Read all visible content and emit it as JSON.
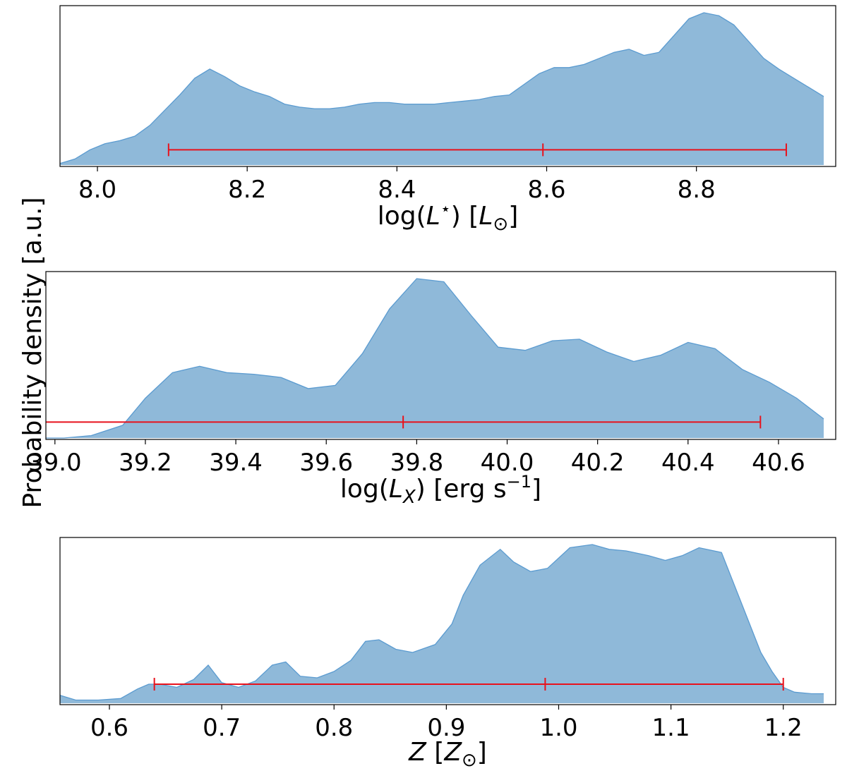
{
  "figure": {
    "shared_ylabel": "Probability density  [a.u.]",
    "fill_color": "#8fb9d9",
    "edge_color": "#5b9bd0",
    "interval_color": "#e8121c"
  },
  "chart_data": [
    {
      "type": "area",
      "xlabel": {
        "pre": "log(",
        "var": "L",
        "sup": "⋆",
        "mid": ")  [",
        "unit": "L",
        "usub": "⊙",
        "post": "]"
      },
      "xlim": [
        7.95,
        8.97
      ],
      "ticks": [
        "8.0",
        "8.2",
        "8.4",
        "8.6",
        "8.8"
      ],
      "x": [
        7.95,
        7.97,
        7.99,
        8.01,
        8.03,
        8.05,
        8.07,
        8.09,
        8.11,
        8.13,
        8.15,
        8.17,
        8.19,
        8.21,
        8.23,
        8.25,
        8.27,
        8.29,
        8.31,
        8.33,
        8.35,
        8.37,
        8.39,
        8.41,
        8.43,
        8.45,
        8.47,
        8.49,
        8.51,
        8.53,
        8.55,
        8.57,
        8.59,
        8.61,
        8.63,
        8.65,
        8.67,
        8.69,
        8.71,
        8.73,
        8.75,
        8.77,
        8.79,
        8.81,
        8.83,
        8.85,
        8.87,
        8.89,
        8.91,
        8.93,
        8.95,
        8.97
      ],
      "y": [
        0.01,
        0.04,
        0.1,
        0.14,
        0.16,
        0.19,
        0.26,
        0.36,
        0.46,
        0.57,
        0.63,
        0.58,
        0.52,
        0.48,
        0.45,
        0.4,
        0.38,
        0.37,
        0.37,
        0.38,
        0.4,
        0.41,
        0.41,
        0.4,
        0.4,
        0.4,
        0.41,
        0.42,
        0.43,
        0.45,
        0.46,
        0.53,
        0.6,
        0.64,
        0.64,
        0.66,
        0.7,
        0.74,
        0.76,
        0.72,
        0.74,
        0.85,
        0.96,
        1.0,
        0.98,
        0.92,
        0.81,
        0.7,
        0.63,
        0.57,
        0.51,
        0.45
      ],
      "interval": {
        "low": 8.095,
        "median": 8.595,
        "high": 8.92
      },
      "interval_level": 0.1
    },
    {
      "type": "area",
      "xlabel": {
        "pre": "log(",
        "var": "L",
        "sub": "X",
        "mid": ")  [erg s",
        "sup": "−1",
        "post": "]"
      },
      "xlim": [
        38.98,
        40.7
      ],
      "ticks": [
        "39.0",
        "39.2",
        "39.4",
        "39.6",
        "39.8",
        "40.0",
        "40.2",
        "40.4",
        "40.6"
      ],
      "x": [
        38.98,
        39.02,
        39.08,
        39.15,
        39.2,
        39.26,
        39.32,
        39.38,
        39.44,
        39.5,
        39.56,
        39.62,
        39.68,
        39.74,
        39.8,
        39.86,
        39.92,
        39.98,
        40.04,
        40.1,
        40.16,
        40.22,
        40.28,
        40.34,
        40.4,
        40.46,
        40.52,
        40.58,
        40.64,
        40.7
      ],
      "y": [
        0.0,
        0.0,
        0.015,
        0.08,
        0.25,
        0.41,
        0.45,
        0.41,
        0.4,
        0.38,
        0.31,
        0.33,
        0.53,
        0.81,
        1.0,
        0.98,
        0.77,
        0.57,
        0.55,
        0.61,
        0.62,
        0.54,
        0.48,
        0.52,
        0.6,
        0.56,
        0.43,
        0.35,
        0.25,
        0.12
      ],
      "interval": {
        "low": 38.98,
        "median": 39.77,
        "high": 40.56
      },
      "interval_level": 0.1
    },
    {
      "type": "area",
      "xlabel": {
        "var": "Z",
        "mid": "  [",
        "unit": "Z",
        "usub": "⊙",
        "post": "]"
      },
      "xlim": [
        0.556,
        1.236
      ],
      "ticks": [
        "0.6",
        "0.7",
        "0.8",
        "0.9",
        "1.0",
        "1.1",
        "1.2"
      ],
      "x": [
        0.556,
        0.57,
        0.59,
        0.61,
        0.625,
        0.635,
        0.645,
        0.66,
        0.675,
        0.688,
        0.7,
        0.715,
        0.73,
        0.745,
        0.757,
        0.77,
        0.785,
        0.8,
        0.815,
        0.828,
        0.84,
        0.855,
        0.87,
        0.89,
        0.905,
        0.915,
        0.93,
        0.948,
        0.96,
        0.975,
        0.99,
        1.01,
        1.03,
        1.045,
        1.06,
        1.08,
        1.095,
        1.11,
        1.125,
        1.145,
        1.16,
        1.17,
        1.18,
        1.19,
        1.2,
        1.21,
        1.225,
        1.236
      ],
      "y": [
        0.05,
        0.02,
        0.02,
        0.03,
        0.09,
        0.12,
        0.12,
        0.1,
        0.15,
        0.24,
        0.13,
        0.1,
        0.14,
        0.24,
        0.26,
        0.17,
        0.16,
        0.2,
        0.27,
        0.39,
        0.4,
        0.34,
        0.32,
        0.37,
        0.5,
        0.68,
        0.87,
        0.97,
        0.89,
        0.83,
        0.85,
        0.98,
        1.0,
        0.97,
        0.96,
        0.93,
        0.9,
        0.93,
        0.98,
        0.95,
        0.68,
        0.5,
        0.32,
        0.2,
        0.1,
        0.07,
        0.06,
        0.06
      ],
      "interval": {
        "low": 0.64,
        "median": 0.988,
        "high": 1.2
      },
      "interval_level": 0.12
    }
  ]
}
